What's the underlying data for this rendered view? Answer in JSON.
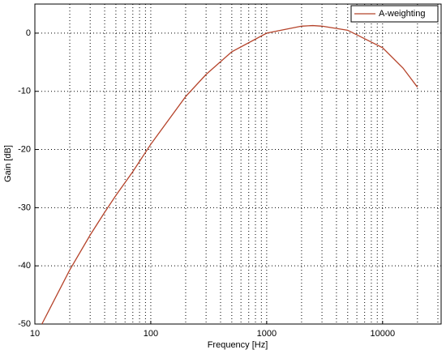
{
  "chart_data": {
    "type": "line",
    "xlabel": "Frequency [Hz]",
    "ylabel": "Gain [dB]",
    "x": [
      11.5,
      20,
      30,
      40,
      50,
      70,
      100,
      200,
      300,
      500,
      1000,
      2000,
      2500,
      3000,
      5000,
      10000,
      15000,
      20000
    ],
    "series": [
      {
        "name": "A-weighting",
        "color": "#b5432a",
        "values": [
          -50,
          -40.7,
          -34.7,
          -30.8,
          -27.9,
          -23.8,
          -19.1,
          -10.9,
          -7.1,
          -3.2,
          0,
          1.2,
          1.3,
          1.2,
          0.5,
          -2.5,
          -6,
          -9.3
        ]
      }
    ],
    "xscale": "log",
    "xlim": [
      10,
      32000
    ],
    "xticks": [
      10,
      100,
      1000,
      10000
    ],
    "xminorticks": [
      20,
      30,
      40,
      50,
      60,
      70,
      80,
      90,
      200,
      300,
      400,
      500,
      600,
      700,
      800,
      900,
      2000,
      3000,
      4000,
      5000,
      6000,
      7000,
      8000,
      9000,
      20000,
      30000
    ],
    "ylim": [
      -50,
      5
    ],
    "yticks": [
      -50,
      -40,
      -30,
      -20,
      -10,
      0
    ],
    "grid": true,
    "legend": "upper right"
  }
}
